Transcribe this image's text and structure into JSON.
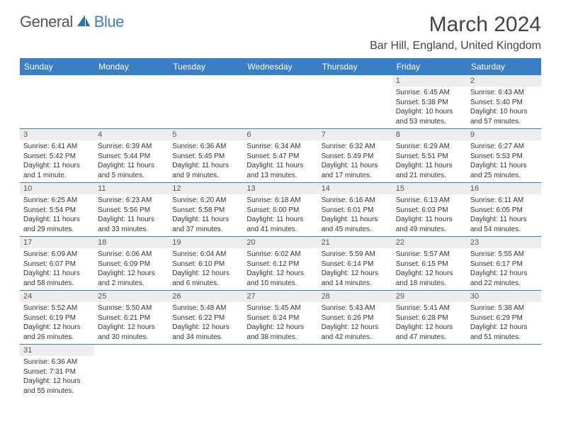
{
  "logo": {
    "text1": "General",
    "text2": "Blue"
  },
  "title": "March 2024",
  "location": "Bar Hill, England, United Kingdom",
  "colors": {
    "header_bg": "#3a7fc4",
    "daynum_bg": "#eceded",
    "rule": "#3a7fc4"
  },
  "weekdays": [
    "Sunday",
    "Monday",
    "Tuesday",
    "Wednesday",
    "Thursday",
    "Friday",
    "Saturday"
  ],
  "grid": [
    [
      null,
      null,
      null,
      null,
      null,
      {
        "n": "1",
        "sr": "Sunrise: 6:45 AM",
        "ss": "Sunset: 5:38 PM",
        "dl": "Daylight: 10 hours and 53 minutes."
      },
      {
        "n": "2",
        "sr": "Sunrise: 6:43 AM",
        "ss": "Sunset: 5:40 PM",
        "dl": "Daylight: 10 hours and 57 minutes."
      }
    ],
    [
      {
        "n": "3",
        "sr": "Sunrise: 6:41 AM",
        "ss": "Sunset: 5:42 PM",
        "dl": "Daylight: 11 hours and 1 minute."
      },
      {
        "n": "4",
        "sr": "Sunrise: 6:39 AM",
        "ss": "Sunset: 5:44 PM",
        "dl": "Daylight: 11 hours and 5 minutes."
      },
      {
        "n": "5",
        "sr": "Sunrise: 6:36 AM",
        "ss": "Sunset: 5:45 PM",
        "dl": "Daylight: 11 hours and 9 minutes."
      },
      {
        "n": "6",
        "sr": "Sunrise: 6:34 AM",
        "ss": "Sunset: 5:47 PM",
        "dl": "Daylight: 11 hours and 13 minutes."
      },
      {
        "n": "7",
        "sr": "Sunrise: 6:32 AM",
        "ss": "Sunset: 5:49 PM",
        "dl": "Daylight: 11 hours and 17 minutes."
      },
      {
        "n": "8",
        "sr": "Sunrise: 6:29 AM",
        "ss": "Sunset: 5:51 PM",
        "dl": "Daylight: 11 hours and 21 minutes."
      },
      {
        "n": "9",
        "sr": "Sunrise: 6:27 AM",
        "ss": "Sunset: 5:53 PM",
        "dl": "Daylight: 11 hours and 25 minutes."
      }
    ],
    [
      {
        "n": "10",
        "sr": "Sunrise: 6:25 AM",
        "ss": "Sunset: 5:54 PM",
        "dl": "Daylight: 11 hours and 29 minutes."
      },
      {
        "n": "11",
        "sr": "Sunrise: 6:23 AM",
        "ss": "Sunset: 5:56 PM",
        "dl": "Daylight: 11 hours and 33 minutes."
      },
      {
        "n": "12",
        "sr": "Sunrise: 6:20 AM",
        "ss": "Sunset: 5:58 PM",
        "dl": "Daylight: 11 hours and 37 minutes."
      },
      {
        "n": "13",
        "sr": "Sunrise: 6:18 AM",
        "ss": "Sunset: 6:00 PM",
        "dl": "Daylight: 11 hours and 41 minutes."
      },
      {
        "n": "14",
        "sr": "Sunrise: 6:16 AM",
        "ss": "Sunset: 6:01 PM",
        "dl": "Daylight: 11 hours and 45 minutes."
      },
      {
        "n": "15",
        "sr": "Sunrise: 6:13 AM",
        "ss": "Sunset: 6:03 PM",
        "dl": "Daylight: 11 hours and 49 minutes."
      },
      {
        "n": "16",
        "sr": "Sunrise: 6:11 AM",
        "ss": "Sunset: 6:05 PM",
        "dl": "Daylight: 11 hours and 54 minutes."
      }
    ],
    [
      {
        "n": "17",
        "sr": "Sunrise: 6:09 AM",
        "ss": "Sunset: 6:07 PM",
        "dl": "Daylight: 11 hours and 58 minutes."
      },
      {
        "n": "18",
        "sr": "Sunrise: 6:06 AM",
        "ss": "Sunset: 6:09 PM",
        "dl": "Daylight: 12 hours and 2 minutes."
      },
      {
        "n": "19",
        "sr": "Sunrise: 6:04 AM",
        "ss": "Sunset: 6:10 PM",
        "dl": "Daylight: 12 hours and 6 minutes."
      },
      {
        "n": "20",
        "sr": "Sunrise: 6:02 AM",
        "ss": "Sunset: 6:12 PM",
        "dl": "Daylight: 12 hours and 10 minutes."
      },
      {
        "n": "21",
        "sr": "Sunrise: 5:59 AM",
        "ss": "Sunset: 6:14 PM",
        "dl": "Daylight: 12 hours and 14 minutes."
      },
      {
        "n": "22",
        "sr": "Sunrise: 5:57 AM",
        "ss": "Sunset: 6:15 PM",
        "dl": "Daylight: 12 hours and 18 minutes."
      },
      {
        "n": "23",
        "sr": "Sunrise: 5:55 AM",
        "ss": "Sunset: 6:17 PM",
        "dl": "Daylight: 12 hours and 22 minutes."
      }
    ],
    [
      {
        "n": "24",
        "sr": "Sunrise: 5:52 AM",
        "ss": "Sunset: 6:19 PM",
        "dl": "Daylight: 12 hours and 26 minutes."
      },
      {
        "n": "25",
        "sr": "Sunrise: 5:50 AM",
        "ss": "Sunset: 6:21 PM",
        "dl": "Daylight: 12 hours and 30 minutes."
      },
      {
        "n": "26",
        "sr": "Sunrise: 5:48 AM",
        "ss": "Sunset: 6:22 PM",
        "dl": "Daylight: 12 hours and 34 minutes."
      },
      {
        "n": "27",
        "sr": "Sunrise: 5:45 AM",
        "ss": "Sunset: 6:24 PM",
        "dl": "Daylight: 12 hours and 38 minutes."
      },
      {
        "n": "28",
        "sr": "Sunrise: 5:43 AM",
        "ss": "Sunset: 6:26 PM",
        "dl": "Daylight: 12 hours and 42 minutes."
      },
      {
        "n": "29",
        "sr": "Sunrise: 5:41 AM",
        "ss": "Sunset: 6:28 PM",
        "dl": "Daylight: 12 hours and 47 minutes."
      },
      {
        "n": "30",
        "sr": "Sunrise: 5:38 AM",
        "ss": "Sunset: 6:29 PM",
        "dl": "Daylight: 12 hours and 51 minutes."
      }
    ],
    [
      {
        "n": "31",
        "sr": "Sunrise: 6:36 AM",
        "ss": "Sunset: 7:31 PM",
        "dl": "Daylight: 12 hours and 55 minutes."
      },
      null,
      null,
      null,
      null,
      null,
      null
    ]
  ]
}
